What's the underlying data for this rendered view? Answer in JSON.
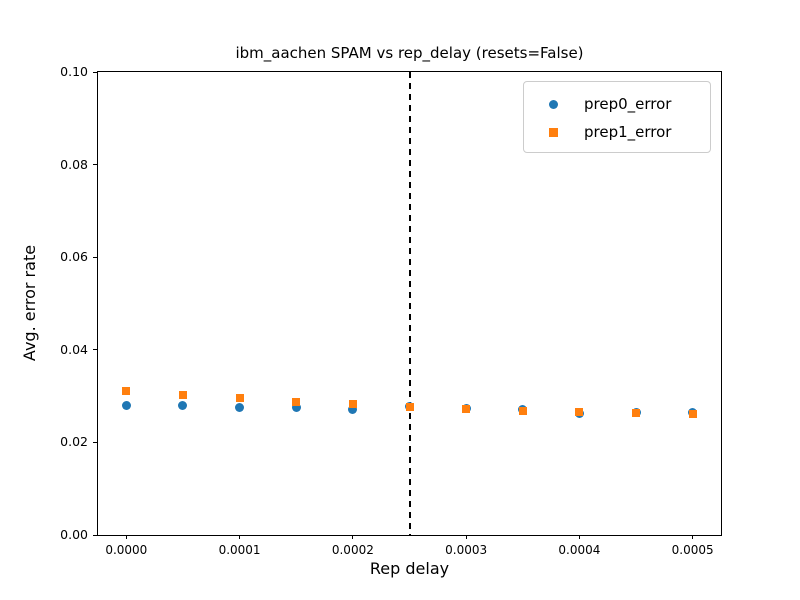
{
  "figure": {
    "background": "#ffffff",
    "text_color": "#000000"
  },
  "chart_data": {
    "type": "scatter",
    "title": "ibm_aachen SPAM vs rep_delay (resets=False)",
    "xlabel": "Rep delay",
    "ylabel": "Avg. error rate",
    "xlim": [
      -2.5e-05,
      0.000525
    ],
    "ylim": [
      0,
      0.1
    ],
    "grid": false,
    "legend_position": "upper right",
    "x_ticks": [
      0.0,
      0.0001,
      0.0002,
      0.0003,
      0.0004,
      0.0005
    ],
    "x_tick_labels": [
      "0.0000",
      "0.0001",
      "0.0002",
      "0.0003",
      "0.0004",
      "0.0005"
    ],
    "y_ticks": [
      0.0,
      0.02,
      0.04,
      0.06,
      0.08,
      0.1
    ],
    "y_tick_labels": [
      "0.00",
      "0.02",
      "0.04",
      "0.06",
      "0.08",
      "0.10"
    ],
    "vline": {
      "x": 0.00025,
      "style": "dashed",
      "color": "#000000"
    },
    "x": [
      0.0,
      5e-05,
      0.0001,
      0.00015,
      0.0002,
      0.00025,
      0.0003,
      0.00035,
      0.0004,
      0.00045,
      0.0005
    ],
    "series": [
      {
        "name": "prep0_error",
        "marker": "circle",
        "color": "#1f77b4",
        "values": [
          0.028,
          0.028,
          0.0275,
          0.0276,
          0.0272,
          0.0277,
          0.0273,
          0.0272,
          0.0262,
          0.0265,
          0.0264
        ]
      },
      {
        "name": "prep1_error",
        "marker": "square",
        "color": "#ff7f0e",
        "values": [
          0.0311,
          0.0303,
          0.0296,
          0.0287,
          0.0282,
          0.0277,
          0.0273,
          0.0268,
          0.0265,
          0.0263,
          0.0261
        ]
      }
    ]
  }
}
